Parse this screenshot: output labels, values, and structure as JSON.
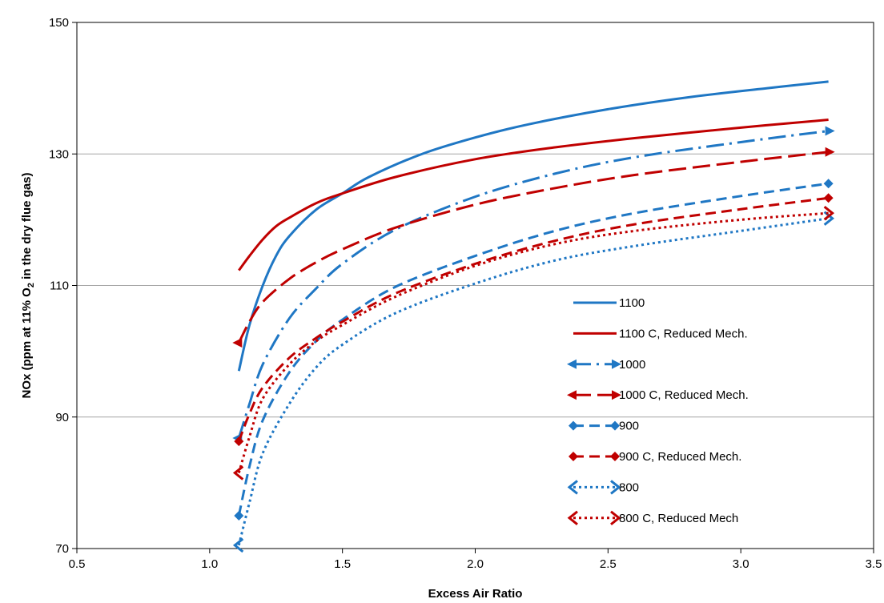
{
  "chart_data": {
    "type": "line",
    "xlabel": "Excess Air Ratio",
    "ylabel": {
      "part1": "NOx (ppm at 11% O",
      "sub": "2",
      "part2": " in the dry flue gas)"
    },
    "xlim": [
      0.5,
      3.5
    ],
    "ylim": [
      70,
      150
    ],
    "xticks": [
      "0.5",
      "1.0",
      "1.5",
      "2.0",
      "2.5",
      "3.0",
      "3.5"
    ],
    "yticks": [
      "70",
      "90",
      "110",
      "130",
      "150"
    ],
    "grid": "horizontal",
    "legend_position": "center-right",
    "colors": {
      "blue": "#1f77c4",
      "red": "#c00000"
    },
    "series": [
      {
        "name": "1100",
        "color": "#1f77c4",
        "dash": "solid",
        "marker": "none",
        "points": [
          [
            1.11,
            97
          ],
          [
            1.15,
            104
          ],
          [
            1.2,
            110
          ],
          [
            1.25,
            114.5
          ],
          [
            1.3,
            117.5
          ],
          [
            1.4,
            121.5
          ],
          [
            1.5,
            124
          ],
          [
            1.6,
            126.5
          ],
          [
            1.8,
            130
          ],
          [
            2.0,
            132.5
          ],
          [
            2.2,
            134.5
          ],
          [
            2.5,
            136.8
          ],
          [
            2.8,
            138.6
          ],
          [
            3.1,
            140
          ],
          [
            3.33,
            141
          ]
        ]
      },
      {
        "name": "1100 C, Reduced Mech.",
        "color": "#c00000",
        "dash": "solid",
        "marker": "none",
        "points": [
          [
            1.11,
            112.3
          ],
          [
            1.15,
            114.5
          ],
          [
            1.2,
            117
          ],
          [
            1.25,
            119
          ],
          [
            1.3,
            120.3
          ],
          [
            1.4,
            122.5
          ],
          [
            1.5,
            124
          ],
          [
            1.7,
            126.5
          ],
          [
            2.0,
            129.2
          ],
          [
            2.3,
            131
          ],
          [
            2.6,
            132.4
          ],
          [
            3.0,
            134
          ],
          [
            3.33,
            135.2
          ]
        ]
      },
      {
        "name": "1000",
        "color": "#1f77c4",
        "dash": "dashdot",
        "marker": "arrow",
        "points": [
          [
            1.11,
            86.8
          ],
          [
            1.15,
            92
          ],
          [
            1.2,
            98
          ],
          [
            1.3,
            105
          ],
          [
            1.4,
            109.5
          ],
          [
            1.5,
            113.3
          ],
          [
            1.7,
            118.5
          ],
          [
            2.0,
            123.5
          ],
          [
            2.3,
            127
          ],
          [
            2.6,
            129.5
          ],
          [
            3.0,
            131.8
          ],
          [
            3.33,
            133.5
          ]
        ]
      },
      {
        "name": "1000 C, Reduced Mech.",
        "color": "#c00000",
        "dash": "longdash",
        "marker": "arrow",
        "points": [
          [
            1.11,
            101.3
          ],
          [
            1.15,
            104.5
          ],
          [
            1.2,
            107.5
          ],
          [
            1.3,
            111
          ],
          [
            1.4,
            113.5
          ],
          [
            1.5,
            115.5
          ],
          [
            1.7,
            118.8
          ],
          [
            2.0,
            122.3
          ],
          [
            2.3,
            124.8
          ],
          [
            2.6,
            126.8
          ],
          [
            3.0,
            128.8
          ],
          [
            3.33,
            130.3
          ]
        ]
      },
      {
        "name": "900",
        "color": "#1f77c4",
        "dash": "dash",
        "marker": "diamond",
        "points": [
          [
            1.11,
            75
          ],
          [
            1.15,
            82.5
          ],
          [
            1.2,
            89.5
          ],
          [
            1.3,
            96.8
          ],
          [
            1.4,
            101.5
          ],
          [
            1.5,
            104.8
          ],
          [
            1.7,
            109.8
          ],
          [
            2.0,
            114.5
          ],
          [
            2.3,
            118.3
          ],
          [
            2.6,
            121
          ],
          [
            3.0,
            123.6
          ],
          [
            3.33,
            125.5
          ]
        ]
      },
      {
        "name": "900 C, Reduced Mech.",
        "color": "#c00000",
        "dash": "dash",
        "marker": "diamond",
        "points": [
          [
            1.11,
            86.3
          ],
          [
            1.15,
            90.5
          ],
          [
            1.2,
            94.5
          ],
          [
            1.3,
            99
          ],
          [
            1.4,
            102
          ],
          [
            1.5,
            104.5
          ],
          [
            1.7,
            108.8
          ],
          [
            2.0,
            113.3
          ],
          [
            2.3,
            116.8
          ],
          [
            2.6,
            119.3
          ],
          [
            3.0,
            121.6
          ],
          [
            3.33,
            123.3
          ]
        ]
      },
      {
        "name": "800",
        "color": "#1f77c4",
        "dash": "dot",
        "marker": "chevron",
        "points": [
          [
            1.11,
            70.5
          ],
          [
            1.15,
            77
          ],
          [
            1.2,
            84.5
          ],
          [
            1.3,
            92
          ],
          [
            1.4,
            97.5
          ],
          [
            1.5,
            101
          ],
          [
            1.7,
            105.8
          ],
          [
            2.0,
            110.3
          ],
          [
            2.3,
            113.8
          ],
          [
            2.6,
            116
          ],
          [
            3.0,
            118.3
          ],
          [
            3.33,
            120.2
          ]
        ]
      },
      {
        "name": "800 C, Reduced Mech",
        "color": "#c00000",
        "dash": "dot",
        "marker": "chevron",
        "points": [
          [
            1.11,
            81.5
          ],
          [
            1.15,
            87
          ],
          [
            1.2,
            92.8
          ],
          [
            1.3,
            98
          ],
          [
            1.4,
            101.5
          ],
          [
            1.5,
            104
          ],
          [
            1.7,
            108.3
          ],
          [
            2.0,
            113
          ],
          [
            2.3,
            116.3
          ],
          [
            2.6,
            118.3
          ],
          [
            3.0,
            120
          ],
          [
            3.33,
            121
          ]
        ]
      }
    ]
  }
}
